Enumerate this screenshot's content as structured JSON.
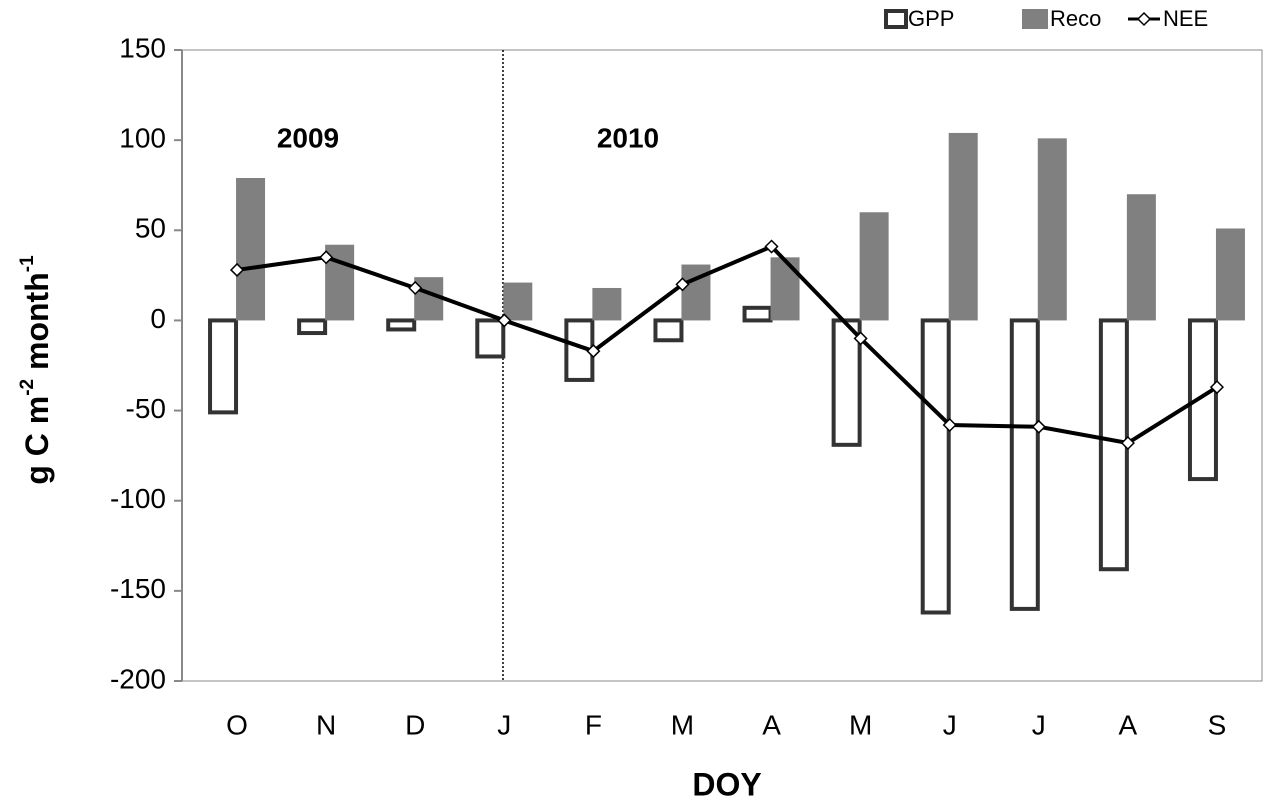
{
  "chart_data": {
    "type": "bar_line",
    "x_label": "DOY",
    "y_label_parts": [
      "g C m",
      "-2",
      " month",
      "-1"
    ],
    "annotations": [
      "2009",
      "2010"
    ],
    "categories": [
      "O",
      "N",
      "D",
      "J",
      "F",
      "M",
      "A",
      "M",
      "J",
      "J",
      "A",
      "S"
    ],
    "series": [
      {
        "name": "GPP",
        "kind": "bar-outline",
        "color": "#333333",
        "values": [
          -51,
          -7,
          -5,
          -20,
          -33,
          -11,
          7,
          -69,
          -162,
          -160,
          -138,
          -88
        ]
      },
      {
        "name": "Reco",
        "kind": "bar",
        "color": "#808080",
        "values": [
          79,
          42,
          24,
          21,
          18,
          31,
          35,
          60,
          104,
          101,
          70,
          51
        ]
      },
      {
        "name": "NEE",
        "kind": "line",
        "color": "#000000",
        "values": [
          28,
          35,
          18,
          0,
          -17,
          20,
          41,
          -10,
          -58,
          -59,
          -68,
          -37
        ]
      }
    ],
    "ylim": [
      -200,
      150
    ],
    "yticks": [
      -200,
      -150,
      -100,
      -50,
      0,
      50,
      100,
      150
    ],
    "grid": false,
    "legend": "top-right"
  }
}
